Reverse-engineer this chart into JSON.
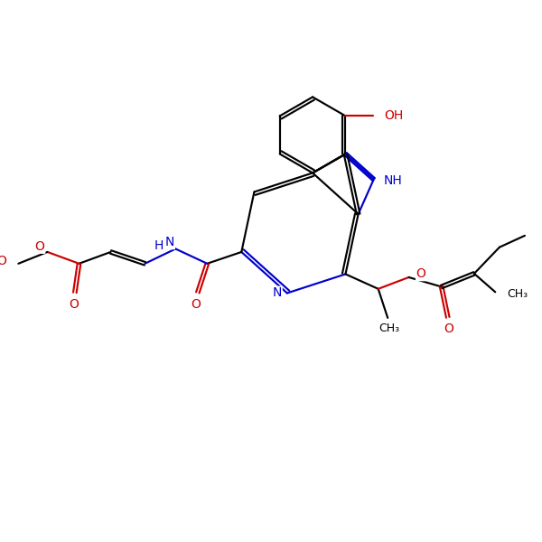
{
  "bg": "#ffffff",
  "bc": "#000000",
  "nc": "#0000cd",
  "oc": "#cc0000",
  "fs": 9.5,
  "lw": 1.55,
  "do": 0.062,
  "figsize": [
    6.0,
    6.0
  ],
  "dpi": 100,
  "xlim": [
    0,
    10
  ],
  "ylim": [
    0,
    10
  ]
}
